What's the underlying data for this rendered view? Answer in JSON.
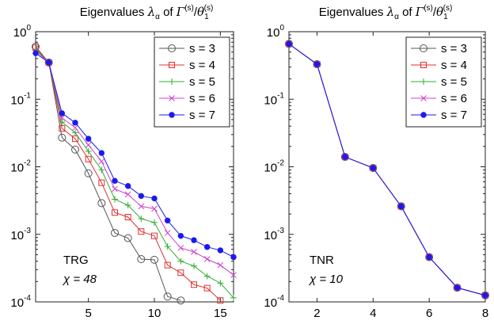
{
  "chart_data": [
    {
      "type": "line",
      "title": "Eigenvalues λα of Γ(s)/θ1(s)",
      "xlim": [
        1,
        16
      ],
      "ylim": [
        0.0001,
        1
      ],
      "yscale": "log",
      "xticks": [
        "5",
        "10",
        "15"
      ],
      "yticks": [
        {
          "base": "10",
          "exp": "0"
        },
        {
          "base": "10",
          "exp": "-1"
        },
        {
          "base": "10",
          "exp": "-2"
        },
        {
          "base": "10",
          "exp": "-3"
        },
        {
          "base": "10",
          "exp": "-4"
        }
      ],
      "legend": "top-right",
      "annotations": [
        "TRG",
        "χ = 48"
      ],
      "series": [
        {
          "name": "s = 3",
          "color": "#555555",
          "marker": "circle",
          "x": [
            1,
            2,
            3,
            4,
            5,
            6,
            7,
            8,
            9,
            10,
            11,
            12
          ],
          "values": [
            0.6,
            0.35,
            0.027,
            0.018,
            0.008,
            0.0029,
            0.00105,
            0.00088,
            0.00043,
            0.00042,
            0.00012,
            0.000105
          ]
        },
        {
          "name": "s = 4",
          "color": "#e03030",
          "marker": "square",
          "x": [
            1,
            2,
            3,
            4,
            5,
            6,
            7,
            8,
            9,
            10,
            11,
            12,
            13,
            14,
            15
          ],
          "values": [
            0.58,
            0.35,
            0.037,
            0.026,
            0.013,
            0.0058,
            0.0021,
            0.0018,
            0.0011,
            0.00095,
            0.00035,
            0.00027,
            0.00018,
            0.00016,
            0.000105
          ]
        },
        {
          "name": "s = 5",
          "color": "#33aa33",
          "marker": "plus",
          "x": [
            1,
            2,
            3,
            4,
            5,
            6,
            7,
            8,
            9,
            10,
            11,
            12,
            13,
            14,
            15,
            16
          ],
          "values": [
            0.55,
            0.35,
            0.046,
            0.032,
            0.017,
            0.009,
            0.0033,
            0.0027,
            0.0017,
            0.0015,
            0.00066,
            0.0004,
            0.00034,
            0.00024,
            0.00019,
            0.000115
          ]
        },
        {
          "name": "s = 6",
          "color": "#cc44cc",
          "marker": "cross",
          "x": [
            1,
            2,
            3,
            4,
            5,
            6,
            7,
            8,
            9,
            10,
            11,
            12,
            13,
            14,
            15,
            16
          ],
          "values": [
            0.52,
            0.35,
            0.053,
            0.038,
            0.021,
            0.012,
            0.0047,
            0.0039,
            0.0026,
            0.0024,
            0.00105,
            0.00063,
            0.00055,
            0.00043,
            0.00035,
            0.00025
          ]
        },
        {
          "name": "s = 7",
          "color": "#1a1aee",
          "marker": "dot",
          "x": [
            1,
            2,
            3,
            4,
            5,
            6,
            7,
            8,
            9,
            10,
            11,
            12,
            13,
            14,
            15,
            16
          ],
          "values": [
            0.48,
            0.35,
            0.062,
            0.045,
            0.026,
            0.016,
            0.0062,
            0.0052,
            0.0037,
            0.0034,
            0.0016,
            0.00095,
            0.00082,
            0.00065,
            0.00058,
            0.00046
          ]
        }
      ]
    },
    {
      "type": "line",
      "title": "Eigenvalues λα of Γ(s)/θ1(s)",
      "xlim": [
        1,
        8
      ],
      "ylim": [
        0.0001,
        1
      ],
      "yscale": "log",
      "xticks": [
        "2",
        "4",
        "6",
        "8"
      ],
      "yticks": [
        {
          "base": "10",
          "exp": "0"
        },
        {
          "base": "10",
          "exp": "-1"
        },
        {
          "base": "10",
          "exp": "-2"
        },
        {
          "base": "10",
          "exp": "-3"
        },
        {
          "base": "10",
          "exp": "-4"
        }
      ],
      "legend": "top-right",
      "annotations": [
        "TNR",
        "χ = 10"
      ],
      "series": [
        {
          "name": "s = 3",
          "color": "#555555",
          "marker": "circle",
          "x": [
            1,
            2,
            3,
            4,
            5,
            6,
            7,
            8
          ],
          "values": [
            0.66,
            0.33,
            0.014,
            0.0096,
            0.0026,
            0.00046,
            0.000162,
            0.000125
          ]
        },
        {
          "name": "s = 4",
          "color": "#e03030",
          "marker": "square",
          "x": [
            1,
            2,
            3,
            4,
            5,
            6,
            7,
            8
          ],
          "values": [
            0.66,
            0.33,
            0.014,
            0.0096,
            0.0026,
            0.00046,
            0.000162,
            0.000125
          ]
        },
        {
          "name": "s = 5",
          "color": "#33aa33",
          "marker": "plus",
          "x": [
            1,
            2,
            3,
            4,
            5,
            6,
            7,
            8
          ],
          "values": [
            0.66,
            0.33,
            0.014,
            0.0096,
            0.0026,
            0.00046,
            0.000162,
            0.000125
          ]
        },
        {
          "name": "s = 6",
          "color": "#cc44cc",
          "marker": "cross",
          "x": [
            1,
            2,
            3,
            4,
            5,
            6,
            7,
            8
          ],
          "values": [
            0.66,
            0.33,
            0.014,
            0.0096,
            0.0026,
            0.00046,
            0.000162,
            0.000125
          ]
        },
        {
          "name": "s = 7",
          "color": "#1a1aee",
          "marker": "dot",
          "x": [
            1,
            2,
            3,
            4,
            5,
            6,
            7,
            8
          ],
          "values": [
            0.66,
            0.33,
            0.014,
            0.0096,
            0.0026,
            0.00046,
            0.000162,
            0.000125
          ]
        }
      ]
    }
  ]
}
